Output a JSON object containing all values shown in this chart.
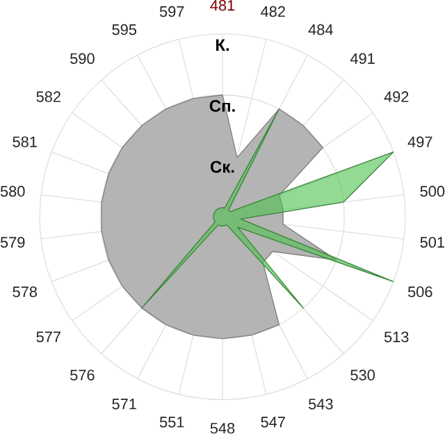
{
  "chart_data": {
    "type": "radar",
    "categories": [
      "481",
      "482",
      "484",
      "491",
      "492",
      "497",
      "500",
      "501",
      "506",
      "513",
      "530",
      "543",
      "547",
      "548",
      "551",
      "571",
      "576",
      "577",
      "578",
      "579",
      "580",
      "581",
      "582",
      "590",
      "595",
      "597"
    ],
    "series": [
      {
        "color": "#b4b4b4",
        "values": [
          2,
          1,
          2,
          2,
          2,
          1,
          1,
          1,
          2,
          1,
          1,
          2,
          2,
          2,
          2,
          2,
          2,
          2,
          2,
          2,
          2,
          2,
          2,
          2,
          2,
          2
        ]
      },
      {
        "color": "#4cbf4c",
        "values": [
          0.15,
          0.15,
          2,
          0.15,
          0.15,
          3,
          2,
          0.3,
          3,
          0.3,
          2,
          0.15,
          0.15,
          0.15,
          0.15,
          0.15,
          2,
          0.15,
          0.15,
          0.15,
          0.15,
          0.15,
          0.15,
          0.15,
          0.15,
          0.15
        ]
      }
    ],
    "ylim": [
      0,
      3
    ],
    "yticks": [
      {
        "value": 1,
        "label": "Ск."
      },
      {
        "value": 2,
        "label": "Сп."
      },
      {
        "value": 3,
        "label": "К."
      }
    ],
    "grid": true
  }
}
